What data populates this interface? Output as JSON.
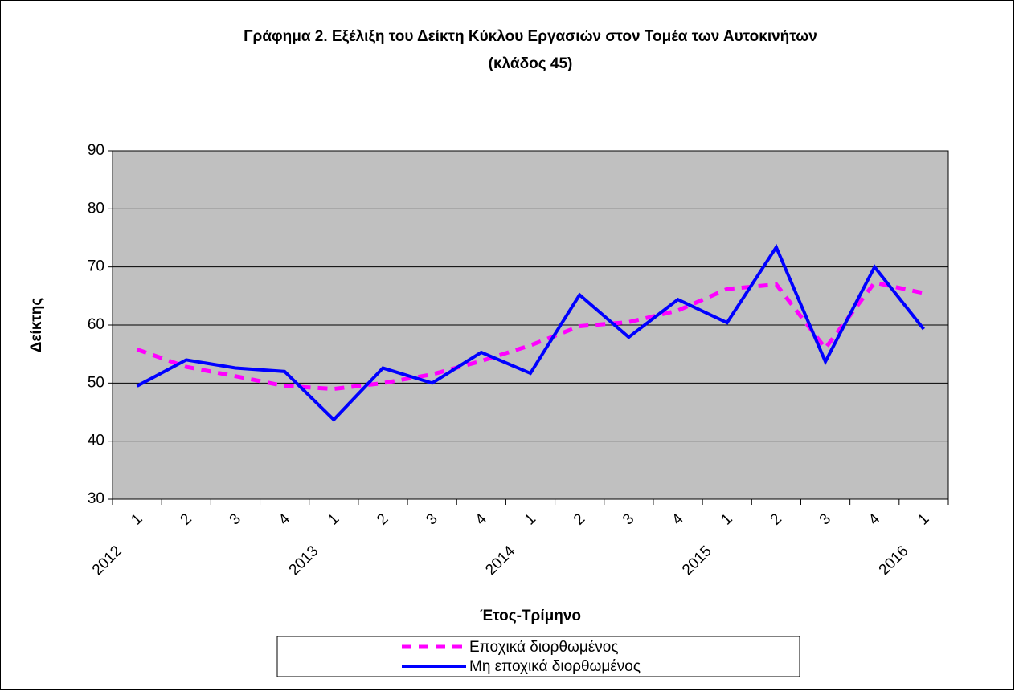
{
  "chart_data": {
    "type": "line",
    "title": [
      "Γράφημα 2. Εξέλιξη του Δείκτη Κύκλου Εργασιών στον Τομέα των Αυτοκινήτων",
      "(κλάδος 45)"
    ],
    "x_label": "Έτος-Τρίμηνο",
    "y_label": "Δείκτης",
    "categories": [
      "1",
      "2",
      "3",
      "4",
      "1",
      "2",
      "3",
      "4",
      "1",
      "2",
      "3",
      "4",
      "1",
      "2",
      "3",
      "4",
      "1"
    ],
    "year_labels": [
      "2012",
      null,
      null,
      null,
      "2013",
      null,
      null,
      null,
      "2014",
      null,
      null,
      null,
      "2015",
      null,
      null,
      null,
      "2016"
    ],
    "series": [
      {
        "name": "Εποχικά διορθωμένος",
        "color": "#ff00ff",
        "dashed": true,
        "values": [
          55.8,
          52.8,
          51.2,
          49.5,
          49,
          50,
          51.5,
          53.8,
          56.5,
          59.8,
          60.5,
          62.5,
          66.2,
          67,
          56,
          67.3,
          65.5
        ]
      },
      {
        "name": "Μη εποχικά διορθωμένος",
        "color": "#0000ff",
        "dashed": false,
        "values": [
          49.5,
          54,
          52.6,
          52,
          43.7,
          52.6,
          50,
          55.3,
          51.7,
          65.2,
          57.9,
          64.4,
          60.4,
          73.4,
          53.7,
          70,
          59.3
        ]
      }
    ],
    "ylim": [
      30,
      90
    ],
    "yticks": [
      30,
      40,
      50,
      60,
      70,
      80,
      90
    ],
    "grid": true
  }
}
